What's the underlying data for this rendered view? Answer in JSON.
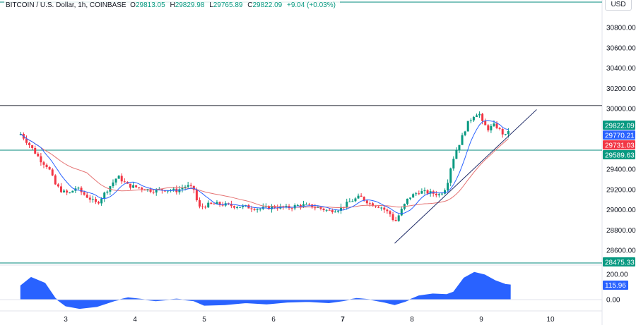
{
  "header": {
    "symbol": "BITCOIN / U.S. Dollar, 1h, COINBASE",
    "open_label": "O",
    "open": "29813.05",
    "high_label": "H",
    "high": "29829.98",
    "low_label": "L",
    "low": "29765.89",
    "close_label": "C",
    "close": "29822.09",
    "change": "+9.04 (+0.03%)"
  },
  "currency": "USD",
  "colors": {
    "up": "#089981",
    "down": "#f23645",
    "ma_fast": "#2962ff",
    "ma_slow": "#e57373",
    "osc": "#2962ff",
    "hline": "#00897b",
    "trend": "#1e2a66"
  },
  "chart_data": {
    "type": "candlestick",
    "timeframe": "1h",
    "y_ticks": [
      30800,
      30600,
      30400,
      30200,
      30000,
      29400,
      29200,
      29000,
      28800,
      28600
    ],
    "y_tick_labels": [
      "30800.00",
      "30600.00",
      "30400.00",
      "30200.00",
      "30000.00",
      "29400.00",
      "29200.00",
      "29000.00",
      "28800.00",
      "28600.00"
    ],
    "x_tick_labels": [
      "3",
      "4",
      "5",
      "6",
      "7",
      "8",
      "9",
      "10"
    ],
    "x_tick_bold": [
      "7"
    ],
    "price_badges": [
      {
        "value": "29822.09",
        "color": "#089981"
      },
      {
        "value": "29770.21",
        "color": "#2962ff"
      },
      {
        "value": "29731.03",
        "color": "#f23645"
      },
      {
        "value": "29589.63",
        "color": "#089981"
      },
      {
        "value": "28475.33",
        "color": "#089981"
      }
    ],
    "horizontal_levels": [
      30030,
      29589.63,
      28475.33
    ],
    "trendline": {
      "from": {
        "day": 7.75,
        "price": 28670
      },
      "to": {
        "day": 9.8,
        "price": 29990
      }
    },
    "close_path": [
      [
        2.35,
        29750
      ],
      [
        2.5,
        29620
      ],
      [
        2.65,
        29480
      ],
      [
        2.75,
        29420
      ],
      [
        2.85,
        29250
      ],
      [
        2.95,
        29180
      ],
      [
        3.05,
        29160
      ],
      [
        3.15,
        29220
      ],
      [
        3.25,
        29160
      ],
      [
        3.35,
        29110
      ],
      [
        3.45,
        29060
      ],
      [
        3.6,
        29200
      ],
      [
        3.75,
        29330
      ],
      [
        3.9,
        29240
      ],
      [
        4.05,
        29220
      ],
      [
        4.25,
        29190
      ],
      [
        4.45,
        29200
      ],
      [
        4.6,
        29190
      ],
      [
        4.75,
        29240
      ],
      [
        4.85,
        29200
      ],
      [
        4.92,
        29020
      ],
      [
        5.05,
        29050
      ],
      [
        5.2,
        29060
      ],
      [
        5.4,
        29040
      ],
      [
        5.6,
        29030
      ],
      [
        5.8,
        29010
      ],
      [
        6.0,
        29030
      ],
      [
        6.2,
        29020
      ],
      [
        6.4,
        29050
      ],
      [
        6.6,
        29030
      ],
      [
        6.8,
        28990
      ],
      [
        6.95,
        29010
      ],
      [
        7.1,
        29080
      ],
      [
        7.25,
        29130
      ],
      [
        7.4,
        29060
      ],
      [
        7.55,
        29030
      ],
      [
        7.7,
        28950
      ],
      [
        7.75,
        28870
      ],
      [
        7.85,
        29000
      ],
      [
        7.95,
        29120
      ],
      [
        8.1,
        29180
      ],
      [
        8.25,
        29170
      ],
      [
        8.4,
        29150
      ],
      [
        8.5,
        29230
      ],
      [
        8.55,
        29400
      ],
      [
        8.62,
        29560
      ],
      [
        8.7,
        29680
      ],
      [
        8.8,
        29850
      ],
      [
        8.9,
        29940
      ],
      [
        8.97,
        29960
      ],
      [
        9.0,
        29870
      ],
      [
        9.1,
        29800
      ],
      [
        9.2,
        29840
      ],
      [
        9.3,
        29760
      ],
      [
        9.35,
        29730
      ],
      [
        9.42,
        29822
      ]
    ],
    "oscillator": {
      "y_ticks": [
        200,
        0
      ],
      "y_tick_labels": [
        "200.00",
        "0.00"
      ],
      "last_value": "115.96",
      "values": [
        [
          2.35,
          110
        ],
        [
          2.5,
          175
        ],
        [
          2.7,
          130
        ],
        [
          2.85,
          10
        ],
        [
          3.0,
          -50
        ],
        [
          3.2,
          -70
        ],
        [
          3.45,
          -55
        ],
        [
          3.7,
          -10
        ],
        [
          3.9,
          15
        ],
        [
          4.3,
          -10
        ],
        [
          4.6,
          5
        ],
        [
          4.85,
          -10
        ],
        [
          5.0,
          -45
        ],
        [
          5.3,
          -40
        ],
        [
          5.6,
          -25
        ],
        [
          5.9,
          -35
        ],
        [
          6.2,
          -20
        ],
        [
          6.5,
          -15
        ],
        [
          6.8,
          -25
        ],
        [
          7.0,
          -10
        ],
        [
          7.2,
          10
        ],
        [
          7.4,
          0
        ],
        [
          7.6,
          -20
        ],
        [
          7.75,
          -40
        ],
        [
          7.9,
          -15
        ],
        [
          8.1,
          30
        ],
        [
          8.3,
          45
        ],
        [
          8.5,
          40
        ],
        [
          8.6,
          60
        ],
        [
          8.75,
          170
        ],
        [
          8.9,
          215
        ],
        [
          9.05,
          195
        ],
        [
          9.2,
          150
        ],
        [
          9.35,
          120
        ],
        [
          9.42,
          116
        ]
      ]
    }
  }
}
